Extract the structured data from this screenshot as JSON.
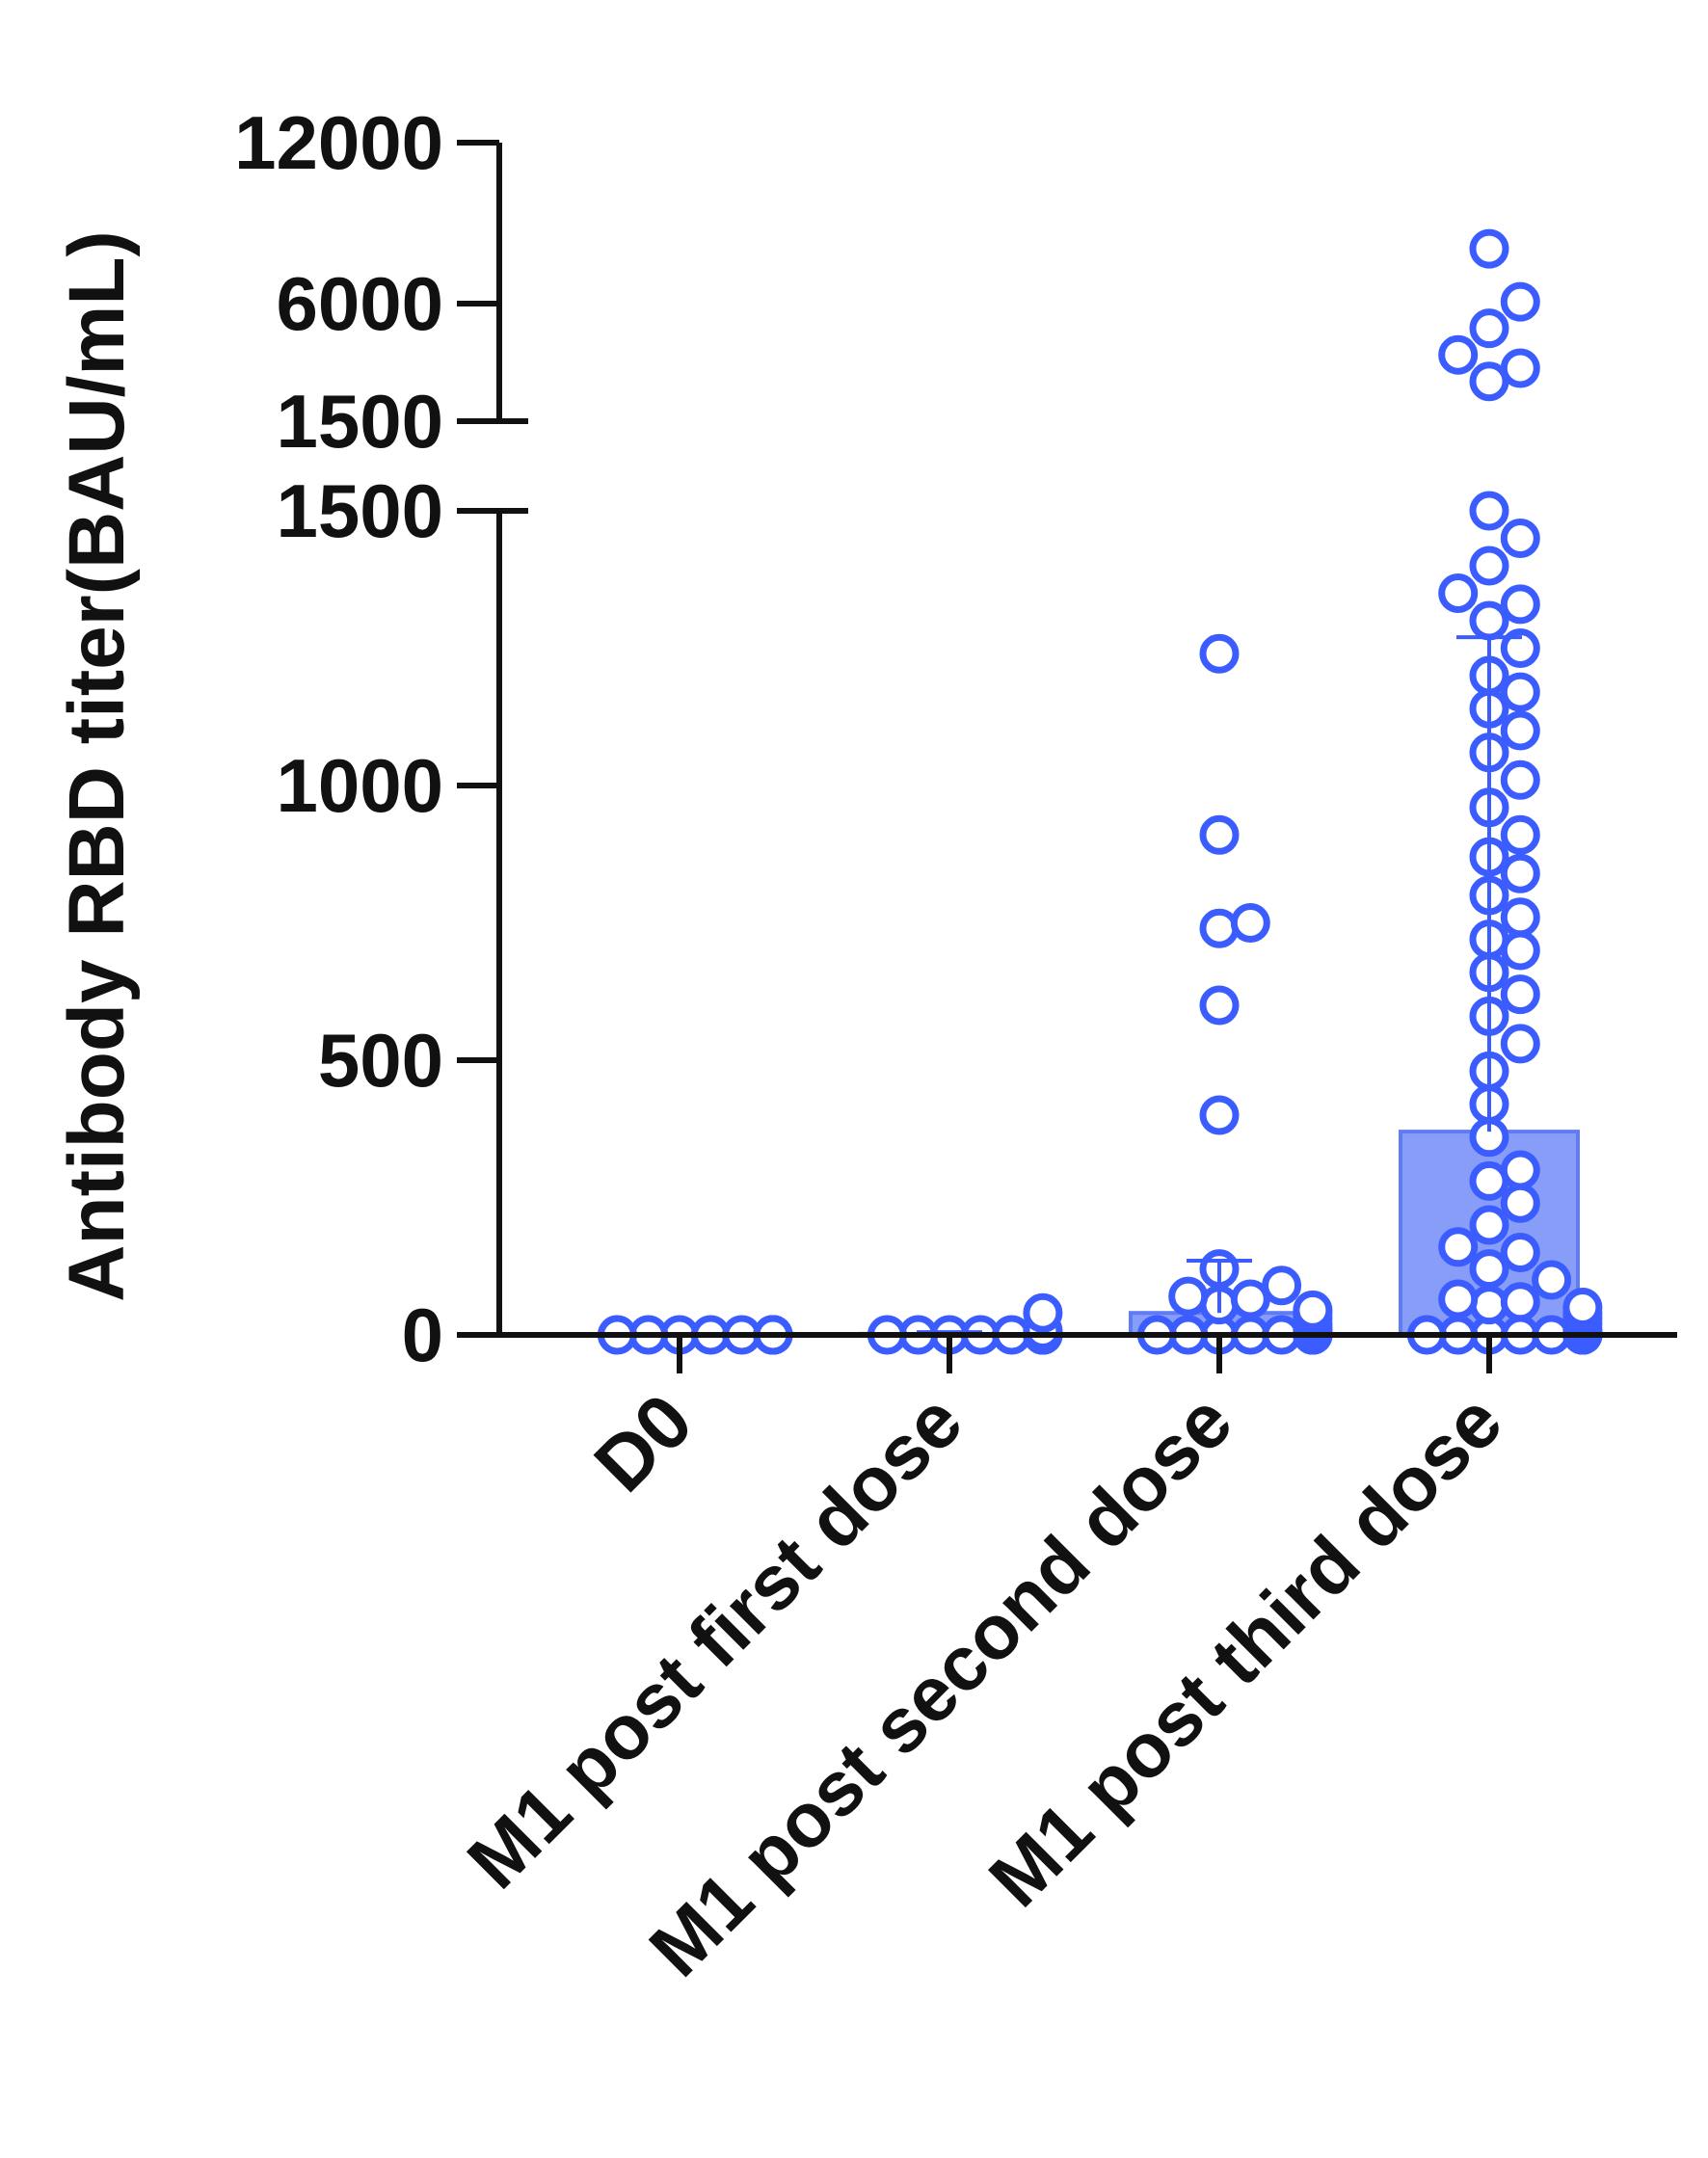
{
  "colors": {
    "point": "#3b5cff",
    "bar": "#5f7cf4",
    "axis": "#111111"
  },
  "chart_data": {
    "type": "scatter",
    "subtype": "bar-with-dot-plot",
    "ylabel": "Antibody RBD  titer(BAU/mL)",
    "xlabel": "",
    "y_axis_break": {
      "lower_segment": [
        0,
        1500
      ],
      "upper_segment": [
        1500,
        12000
      ],
      "lower_ticks": [
        "0",
        "500",
        "1000",
        "1500"
      ],
      "upper_ticks": [
        "1500",
        "6000",
        "12000"
      ]
    },
    "categories": [
      "D0",
      "M1 post first dose",
      "M1 post second dose",
      "M1 post third dose"
    ],
    "bars": [
      {
        "category": "D0",
        "mean": 0,
        "sd_upper": 0
      },
      {
        "category": "M1 post first dose",
        "mean": 2,
        "sd_upper": 5
      },
      {
        "category": "M1 post second dose",
        "mean": 40,
        "sd_upper": 135
      },
      {
        "category": "M1 post third dose",
        "mean": 370,
        "sd_upper": 1270
      }
    ],
    "points": [
      {
        "category": "D0",
        "values": [
          0,
          0,
          0,
          0,
          0,
          0,
          0,
          0,
          0,
          0,
          0,
          0,
          0,
          0,
          0,
          0,
          0,
          0,
          0,
          0,
          0,
          0,
          0,
          0,
          0,
          0
        ]
      },
      {
        "category": "M1 post first dose",
        "values": [
          0,
          0,
          0,
          0,
          0,
          0,
          0,
          0,
          0,
          0,
          0,
          0,
          0,
          0,
          0,
          0,
          0,
          0,
          0,
          0,
          2,
          3,
          5,
          8,
          40
        ]
      },
      {
        "category": "M1 post second dose",
        "values": [
          0,
          0,
          0,
          0,
          0,
          0,
          0,
          0,
          0,
          0,
          0,
          0,
          0,
          0,
          0,
          0,
          0,
          0,
          5,
          10,
          15,
          20,
          30,
          40,
          45,
          55,
          65,
          70,
          90,
          120,
          400,
          600,
          740,
          750,
          910,
          1240
        ]
      },
      {
        "category": "M1 post third dose",
        "values": [
          0,
          0,
          0,
          0,
          0,
          0,
          0,
          0,
          0,
          0,
          0,
          0,
          0,
          0,
          0,
          5,
          10,
          20,
          30,
          40,
          50,
          55,
          60,
          65,
          100,
          120,
          150,
          160,
          200,
          240,
          280,
          300,
          360,
          420,
          480,
          530,
          580,
          620,
          660,
          700,
          720,
          760,
          800,
          840,
          870,
          910,
          960,
          1010,
          1060,
          1100,
          1140,
          1170,
          1200,
          1250,
          1300,
          1330,
          1350,
          1400,
          1450,
          1500,
          3000,
          3500,
          4000,
          5000,
          6000,
          8000
        ]
      }
    ]
  }
}
